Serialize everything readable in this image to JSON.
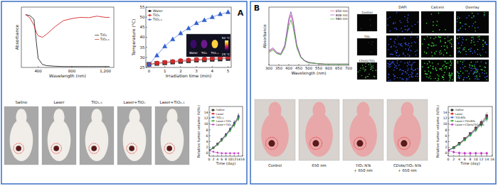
{
  "chart_data": [
    {
      "type": "line",
      "x_label": "Wavelength (nm)",
      "y_label": "Absorbance",
      "x": [
        250,
        300,
        350,
        380,
        400,
        450,
        500,
        600,
        700,
        800,
        900,
        1000,
        1100,
        1200,
        1250
      ],
      "xlim": [
        200,
        1300
      ],
      "xticks": [
        400,
        800,
        {
          "value": 1200,
          "label": "1,200"
        }
      ],
      "ylim": [
        0,
        2
      ],
      "tick_labels": "x",
      "legend": "right",
      "series": [
        {
          "name": "TiO₂",
          "color": "#222222",
          "values": [
            1.75,
            1.72,
            1.6,
            0.8,
            0.3,
            0.1,
            0.06,
            0.04,
            0.03,
            0.03,
            0.03,
            0.03,
            0.03,
            0.03,
            0.03
          ]
        },
        {
          "name": "TiO₁.₅",
          "color": "#d62728",
          "values": [
            1.75,
            1.65,
            1.4,
            1.15,
            1.05,
            1.0,
            1.1,
            1.35,
            1.55,
            1.62,
            1.66,
            1.65,
            1.7,
            1.66,
            1.66
          ]
        }
      ]
    },
    {
      "type": "line",
      "x_label": "Irradiation time (min)",
      "y_label": "Temperature (°C)",
      "x": [
        0,
        0.5,
        1,
        1.5,
        2,
        2.5,
        3,
        3.5,
        4,
        4.5,
        5
      ],
      "xlim": [
        -0.2,
        5.2
      ],
      "xticks": [
        0,
        1,
        2,
        3,
        4,
        5
      ],
      "ylim": [
        25,
        55
      ],
      "yticks": [
        25,
        30,
        35,
        40,
        45,
        50,
        55
      ],
      "legend": "upper-left",
      "series": [
        {
          "name": "Water",
          "color": "#222222",
          "marker": "square",
          "values": [
            26.5,
            27,
            27.3,
            27.7,
            28,
            28.3,
            28.6,
            28.8,
            29,
            29.2,
            29.4
          ]
        },
        {
          "name": "TiO₂",
          "color": "#d62728",
          "marker": "circle",
          "values": [
            26.5,
            27.2,
            27.6,
            28,
            28.4,
            28.7,
            29,
            29.3,
            29.5,
            29.8,
            30
          ]
        },
        {
          "name": "TiO₁.₅",
          "color": "#2f5fd0",
          "marker": "triangle",
          "values": [
            26.5,
            31,
            35.5,
            39,
            42,
            44.5,
            47,
            48.5,
            50,
            51.5,
            52.5
          ]
        }
      ]
    },
    {
      "type": "line",
      "x_label": "Time (day)",
      "y_label": "Relative tumor volume (V/V₀)",
      "x": [
        0,
        2,
        4,
        6,
        8,
        10,
        12,
        14
      ],
      "xlim": [
        0,
        16
      ],
      "xticks": [
        0,
        2,
        4,
        6,
        8,
        10,
        12,
        14,
        16
      ],
      "ylim": [
        -1,
        16
      ],
      "yticks": [
        0,
        2,
        4,
        6,
        8,
        10,
        12,
        14
      ],
      "legend": "upper-left",
      "series": [
        {
          "name": "Saline",
          "color": "#222222",
          "marker": "square",
          "values": [
            1,
            1.9,
            3.2,
            4.8,
            6.4,
            8.2,
            10.3,
            12.6
          ],
          "errors": [
            0,
            0.2,
            0.3,
            0.5,
            0.6,
            0.8,
            1,
            1.2
          ]
        },
        {
          "name": "Laser",
          "color": "#d62728",
          "marker": "circle",
          "values": [
            1,
            1.8,
            3.0,
            4.5,
            6.2,
            8.0,
            10.0,
            12.2
          ],
          "errors": [
            0,
            0.2,
            0.3,
            0.4,
            0.6,
            0.7,
            0.9,
            1.1
          ]
        },
        {
          "name": "TiO₁.₅",
          "color": "#2f5fd0",
          "marker": "triangle",
          "values": [
            1,
            1.9,
            3.1,
            4.6,
            6.3,
            8.1,
            10.1,
            12.4
          ],
          "errors": [
            0,
            0.2,
            0.3,
            0.5,
            0.6,
            0.8,
            1,
            1.1
          ]
        },
        {
          "name": "Laser+TiO₂",
          "color": "#2ca02c",
          "marker": "triangle-down",
          "values": [
            1,
            1.7,
            2.9,
            4.3,
            5.9,
            7.7,
            9.6,
            11.8
          ],
          "errors": [
            0,
            0.2,
            0.3,
            0.4,
            0.5,
            0.7,
            0.9,
            1
          ]
        },
        {
          "name": "Laser+TiO₁.₅",
          "color": "#c030c0",
          "marker": "diamond",
          "values": [
            1,
            0.5,
            0.2,
            0,
            0,
            0,
            0,
            0
          ],
          "errors": [
            0,
            0.1,
            0.1,
            0,
            0,
            0,
            0,
            0
          ]
        }
      ]
    },
    {
      "type": "line",
      "x_label": "Wavelength (nm)",
      "y_label": "Absorbance",
      "x": [
        300,
        320,
        340,
        360,
        380,
        400,
        410,
        420,
        440,
        460,
        480,
        500,
        540,
        580,
        620,
        660,
        700
      ],
      "xlim": [
        300,
        700
      ],
      "xticks": [
        300,
        350,
        400,
        450,
        500,
        550,
        600,
        650,
        700
      ],
      "ylim": [
        0,
        1
      ],
      "tick_labels": "x",
      "legend": "upper-right",
      "series": [
        {
          "name": "650 nm",
          "color": "#e0509a",
          "values": [
            0.24,
            0.28,
            0.21,
            0.19,
            0.33,
            0.76,
            0.86,
            0.75,
            0.33,
            0.14,
            0.08,
            0.05,
            0.03,
            0.02,
            0.02,
            0.02,
            0.02
          ]
        },
        {
          "name": "808 nm",
          "color": "#8a4fc0",
          "values": [
            0.25,
            0.3,
            0.22,
            0.2,
            0.35,
            0.8,
            0.92,
            0.8,
            0.35,
            0.15,
            0.08,
            0.05,
            0.03,
            0.02,
            0.02,
            0.02,
            0.02
          ]
        },
        {
          "name": "980 nm",
          "color": "#4caf3c",
          "values": [
            0.22,
            0.26,
            0.2,
            0.18,
            0.3,
            0.68,
            0.78,
            0.68,
            0.3,
            0.13,
            0.07,
            0.04,
            0.03,
            0.02,
            0.02,
            0.02,
            0.02
          ]
        }
      ]
    },
    {
      "type": "line",
      "x_label": "Time (day)",
      "y_label": "Relative tumor volume (V/V₀)",
      "x": [
        0,
        2,
        4,
        6,
        8,
        10,
        12,
        14
      ],
      "xlim": [
        0,
        16
      ],
      "xticks": [
        0,
        2,
        4,
        6,
        8,
        10,
        12,
        14,
        16
      ],
      "ylim": [
        -1,
        16
      ],
      "yticks": [
        0,
        2,
        4,
        6,
        8,
        10,
        12,
        14
      ],
      "legend": "upper-left",
      "series": [
        {
          "name": "Saline",
          "color": "#222222",
          "marker": "square",
          "values": [
            1,
            2.0,
            3.4,
            5.0,
            6.7,
            8.6,
            10.5,
            12.8
          ],
          "errors": [
            0,
            0.2,
            0.3,
            0.5,
            0.6,
            0.8,
            1,
            1.2
          ]
        },
        {
          "name": "Laser",
          "color": "#d62728",
          "marker": "circle",
          "values": [
            1,
            1.9,
            3.2,
            4.8,
            6.5,
            8.3,
            10.2,
            12.4
          ],
          "errors": [
            0,
            0.2,
            0.3,
            0.4,
            0.6,
            0.7,
            0.9,
            1.1
          ]
        },
        {
          "name": "TiO₂NTs",
          "color": "#2f5fd0",
          "marker": "triangle",
          "values": [
            1,
            1.9,
            3.1,
            4.7,
            6.4,
            8.2,
            10.0,
            12.1
          ],
          "errors": [
            0,
            0.2,
            0.3,
            0.5,
            0.6,
            0.8,
            1,
            1.1
          ]
        },
        {
          "name": "Laser+TiO₂NTs",
          "color": "#2ca02c",
          "marker": "triangle-down",
          "values": [
            1,
            1.8,
            3.0,
            4.5,
            6.1,
            7.9,
            9.7,
            11.7
          ],
          "errors": [
            0,
            0.2,
            0.3,
            0.4,
            0.5,
            0.7,
            0.9,
            1
          ]
        },
        {
          "name": "Laser+CDots/TiO₂NTs",
          "color": "#c030c0",
          "marker": "diamond",
          "values": [
            1,
            0.4,
            0.1,
            0,
            0,
            0,
            0,
            0
          ],
          "errors": [
            0,
            0.1,
            0.1,
            0,
            0,
            0,
            0,
            0
          ]
        }
      ]
    }
  ],
  "panels": [
    {
      "label": "A"
    },
    {
      "label": "B"
    }
  ],
  "thermal_inset": {
    "max_label": "50 °C",
    "min_label": "25 °C",
    "samples": [
      "Water",
      "TiO₂",
      "TiO₁.₅"
    ]
  },
  "mouse_photos_a": [
    "Saline",
    "Laser",
    "TiO₁.₅",
    "Laser+TiO₂",
    "Laser+TiO₁.₅"
  ],
  "micrographs": {
    "left": [
      "Control",
      "TiO₂",
      "CDots/TiO₂"
    ],
    "columns": [
      "DAPI",
      "Calcein",
      "Overlay"
    ]
  },
  "mouse_photos_b": [
    [
      "Control"
    ],
    [
      "650 nm"
    ],
    [
      "TiO₂ NTs",
      "+ 650 nm"
    ],
    [
      "CDots/TiO₂ NTs",
      "+ 650 nm"
    ]
  ]
}
